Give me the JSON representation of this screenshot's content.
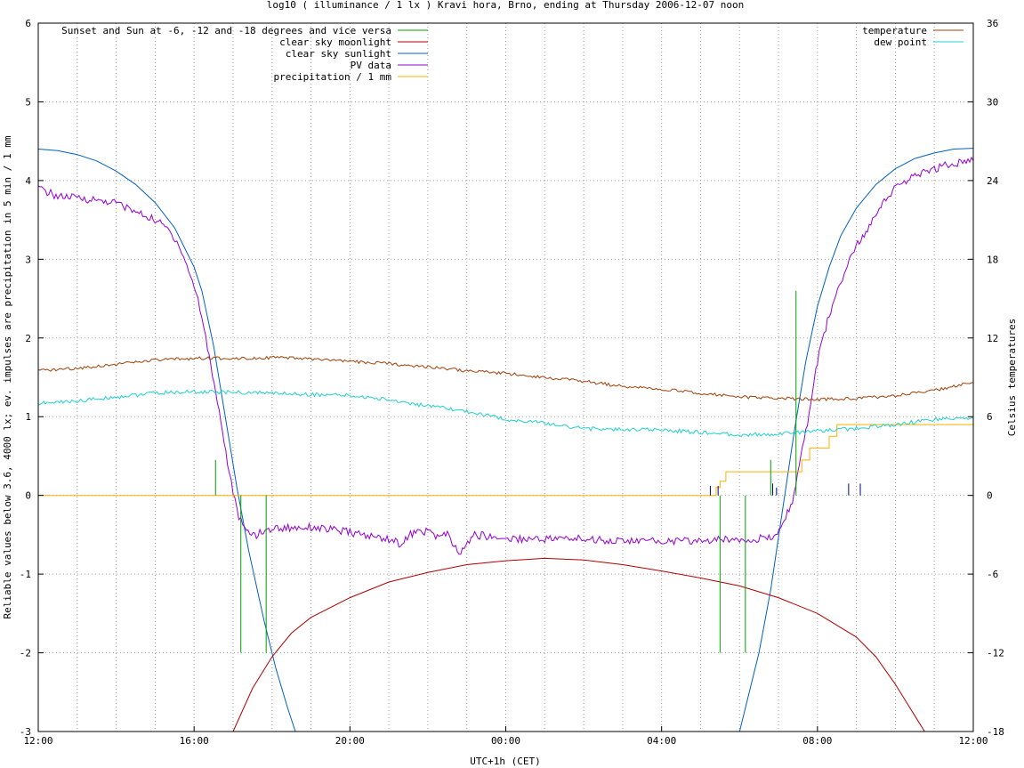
{
  "chart_data": {
    "type": "line",
    "title": "log10 ( illuminance / 1 lx ) Kravi hora, Brno, ending at Thursday 2006-12-07 noon",
    "xlabel": "UTC+1h (CET)",
    "ylabel": "Reliable values below 3.6, 4000 lx; ev. impulses are precipitation in 5 min / 1 mm",
    "y2label": "Celsius temperatures",
    "x_unit": "hours since 12:00",
    "xlim": [
      0,
      24
    ],
    "ylim": [
      -3,
      6
    ],
    "y2lim": [
      -18,
      36
    ],
    "x_ticks": [
      {
        "x": 0,
        "label": "12:00"
      },
      {
        "x": 4,
        "label": "16:00"
      },
      {
        "x": 8,
        "label": "20:00"
      },
      {
        "x": 12,
        "label": "00:00"
      },
      {
        "x": 16,
        "label": "04:00"
      },
      {
        "x": 20,
        "label": "08:00"
      },
      {
        "x": 24,
        "label": "12:00"
      }
    ],
    "y_ticks": [
      -3,
      -2,
      -1,
      0,
      1,
      2,
      3,
      4,
      5,
      6
    ],
    "y2_ticks": [
      -18,
      -12,
      -6,
      0,
      6,
      12,
      18,
      24,
      30,
      36
    ],
    "grid": true,
    "legend_left": [
      {
        "label": "Sunset and Sun at -6, -12 and -18 degrees and vice versa",
        "color": "#00a000"
      },
      {
        "label": "clear sky moonlight",
        "color": "#b00000"
      },
      {
        "label": "clear sky sunlight",
        "color": "#0060c0"
      },
      {
        "label": "PV data",
        "color": "#9400d3"
      },
      {
        "label": "precipitation / 1 mm",
        "color": "#ffb000"
      }
    ],
    "legend_right": [
      {
        "label": "temperature",
        "color": "#a0400a"
      },
      {
        "label": "dew point",
        "color": "#20d0d0"
      }
    ],
    "series": [
      {
        "name": "clear sky sunlight",
        "color": "#0060c0",
        "axis": "y",
        "segments": [
          [
            [
              0,
              4.4
            ],
            [
              0.5,
              4.38
            ],
            [
              1,
              4.33
            ],
            [
              1.5,
              4.25
            ],
            [
              2,
              4.12
            ],
            [
              2.5,
              3.95
            ],
            [
              3,
              3.72
            ],
            [
              3.5,
              3.4
            ],
            [
              4,
              2.9
            ],
            [
              4.2,
              2.6
            ],
            [
              4.5,
              1.9
            ],
            [
              4.8,
              1.0
            ],
            [
              5.1,
              0.1
            ],
            [
              5.4,
              -0.7
            ],
            [
              5.8,
              -1.6
            ],
            [
              6.1,
              -2.2
            ],
            [
              6.4,
              -2.7
            ],
            [
              6.6,
              -3.0
            ]
          ],
          [
            [
              18.0,
              -3.0
            ],
            [
              18.3,
              -2.4
            ],
            [
              18.5,
              -2.0
            ],
            [
              18.8,
              -1.2
            ],
            [
              19.1,
              -0.2
            ],
            [
              19.4,
              0.8
            ],
            [
              19.7,
              1.7
            ],
            [
              20.0,
              2.4
            ],
            [
              20.3,
              2.9
            ],
            [
              20.6,
              3.3
            ],
            [
              21,
              3.65
            ],
            [
              21.5,
              3.95
            ],
            [
              22,
              4.15
            ],
            [
              22.5,
              4.28
            ],
            [
              23,
              4.35
            ],
            [
              23.5,
              4.4
            ],
            [
              24,
              4.41
            ]
          ]
        ]
      },
      {
        "name": "clear sky moonlight",
        "color": "#b00000",
        "axis": "y",
        "segments": [
          [
            [
              5.0,
              -3.0
            ],
            [
              5.5,
              -2.45
            ],
            [
              6,
              -2.05
            ],
            [
              6.5,
              -1.75
            ],
            [
              7,
              -1.55
            ],
            [
              8,
              -1.3
            ],
            [
              9,
              -1.1
            ],
            [
              10,
              -0.98
            ],
            [
              11,
              -0.88
            ],
            [
              12,
              -0.83
            ],
            [
              13,
              -0.8
            ],
            [
              14,
              -0.82
            ],
            [
              15,
              -0.88
            ],
            [
              16,
              -0.96
            ],
            [
              17,
              -1.05
            ],
            [
              18,
              -1.15
            ],
            [
              19,
              -1.3
            ],
            [
              20,
              -1.5
            ],
            [
              21,
              -1.8
            ],
            [
              21.5,
              -2.05
            ],
            [
              22,
              -2.4
            ],
            [
              22.5,
              -2.8
            ],
            [
              22.75,
              -3.0
            ]
          ]
        ]
      },
      {
        "name": "PV data",
        "color": "#9400d3",
        "axis": "y",
        "noise": 0.05,
        "segments": [
          [
            [
              0,
              3.9
            ],
            [
              0.5,
              3.8
            ],
            [
              1,
              3.78
            ],
            [
              1.5,
              3.75
            ],
            [
              2,
              3.72
            ],
            [
              2.5,
              3.6
            ],
            [
              3,
              3.5
            ],
            [
              3.3,
              3.4
            ],
            [
              3.6,
              3.2
            ],
            [
              3.9,
              2.8
            ],
            [
              4.1,
              2.5
            ],
            [
              4.3,
              2.0
            ],
            [
              4.6,
              1.2
            ],
            [
              4.9,
              0.3
            ],
            [
              5.1,
              -0.2
            ],
            [
              5.3,
              -0.45
            ],
            [
              5.6,
              -0.5
            ],
            [
              6,
              -0.42
            ],
            [
              7,
              -0.4
            ],
            [
              8,
              -0.47
            ],
            [
              8.5,
              -0.52
            ],
            [
              9,
              -0.55
            ],
            [
              9.3,
              -0.62
            ],
            [
              9.6,
              -0.48
            ],
            [
              10,
              -0.45
            ],
            [
              10.2,
              -0.52
            ],
            [
              10.5,
              -0.5
            ],
            [
              10.8,
              -0.75
            ],
            [
              11.2,
              -0.5
            ],
            [
              12,
              -0.55
            ],
            [
              13,
              -0.55
            ],
            [
              14,
              -0.55
            ],
            [
              15,
              -0.58
            ],
            [
              16,
              -0.58
            ],
            [
              17,
              -0.58
            ],
            [
              18,
              -0.55
            ],
            [
              18.8,
              -0.55
            ],
            [
              19.1,
              -0.4
            ],
            [
              19.4,
              0.0
            ],
            [
              19.7,
              0.8
            ],
            [
              20,
              1.7
            ],
            [
              20.3,
              2.3
            ],
            [
              20.6,
              2.7
            ],
            [
              20.9,
              3.1
            ],
            [
              21.2,
              3.3
            ],
            [
              21.5,
              3.6
            ],
            [
              21.8,
              3.8
            ],
            [
              22.1,
              3.95
            ],
            [
              22.5,
              4.05
            ],
            [
              23,
              4.15
            ],
            [
              23.5,
              4.22
            ],
            [
              24,
              4.25
            ]
          ]
        ]
      },
      {
        "name": "precipitation / 1 mm",
        "color": "#ffb000",
        "axis": "y",
        "step": true,
        "segments": [
          [
            [
              0,
              0
            ],
            [
              17.4,
              0
            ],
            [
              17.4,
              0.1
            ],
            [
              17.5,
              0.1
            ],
            [
              17.5,
              0.18
            ],
            [
              17.65,
              0.18
            ],
            [
              17.65,
              0.3
            ],
            [
              19.6,
              0.3
            ],
            [
              19.6,
              0.45
            ],
            [
              19.8,
              0.45
            ],
            [
              19.8,
              0.6
            ],
            [
              20.0,
              0.6
            ],
            [
              20.0,
              0.6
            ],
            [
              20.3,
              0.6
            ],
            [
              20.3,
              0.75
            ],
            [
              20.5,
              0.75
            ],
            [
              20.5,
              0.9
            ],
            [
              24,
              0.9
            ]
          ]
        ]
      },
      {
        "name": "temperature",
        "color": "#a0400a",
        "axis": "y2",
        "noise": 0.12,
        "segments": [
          [
            [
              0,
              9.5
            ],
            [
              1,
              9.7
            ],
            [
              2,
              10.0
            ],
            [
              3,
              10.3
            ],
            [
              4,
              10.45
            ],
            [
              5,
              10.45
            ],
            [
              6,
              10.5
            ],
            [
              7,
              10.4
            ],
            [
              8,
              10.2
            ],
            [
              9,
              10.05
            ],
            [
              10,
              9.8
            ],
            [
              11,
              9.5
            ],
            [
              12,
              9.3
            ],
            [
              13,
              9.0
            ],
            [
              14,
              8.7
            ],
            [
              15,
              8.3
            ],
            [
              16,
              8.1
            ],
            [
              17,
              7.8
            ],
            [
              18,
              7.5
            ],
            [
              19,
              7.4
            ],
            [
              20,
              7.3
            ],
            [
              21,
              7.4
            ],
            [
              22,
              7.6
            ],
            [
              23,
              8.0
            ],
            [
              24,
              8.6
            ]
          ]
        ]
      },
      {
        "name": "dew point",
        "color": "#20d0d0",
        "axis": "y2",
        "noise": 0.15,
        "segments": [
          [
            [
              0,
              7.0
            ],
            [
              1,
              7.2
            ],
            [
              2,
              7.5
            ],
            [
              3,
              7.8
            ],
            [
              4,
              7.9
            ],
            [
              5,
              7.85
            ],
            [
              6,
              7.8
            ],
            [
              7,
              7.7
            ],
            [
              8,
              7.6
            ],
            [
              9,
              7.3
            ],
            [
              10,
              6.8
            ],
            [
              11,
              6.4
            ],
            [
              12,
              5.8
            ],
            [
              13,
              5.5
            ],
            [
              14,
              5.1
            ],
            [
              15,
              5.0
            ],
            [
              16,
              5.0
            ],
            [
              17,
              4.8
            ],
            [
              18,
              4.6
            ],
            [
              19,
              4.7
            ],
            [
              20,
              4.9
            ],
            [
              21,
              5.1
            ],
            [
              22,
              5.4
            ],
            [
              23,
              5.8
            ],
            [
              24,
              5.9
            ]
          ]
        ]
      }
    ],
    "sun_markers": {
      "color": "#00a000",
      "lines": [
        {
          "x": 3.95,
          "y": 0
        },
        {
          "x": 4.55,
          "y": 0.45
        },
        {
          "x": 5.2,
          "y": -2
        },
        {
          "x": 5.85,
          "y": -2
        },
        {
          "x": 17.5,
          "y": -2
        },
        {
          "x": 18.15,
          "y": -2
        },
        {
          "x": 18.8,
          "y": 0.45
        },
        {
          "x": 19.45,
          "y": 2.6
        }
      ]
    },
    "precip_impulses": {
      "color": "#000080",
      "bars": [
        {
          "x": 17.25,
          "h": 0.12
        },
        {
          "x": 17.45,
          "h": 0.12
        },
        {
          "x": 18.85,
          "h": 0.15
        },
        {
          "x": 18.95,
          "h": 0.1
        },
        {
          "x": 20.8,
          "h": 0.15
        },
        {
          "x": 21.1,
          "h": 0.15
        }
      ]
    }
  }
}
